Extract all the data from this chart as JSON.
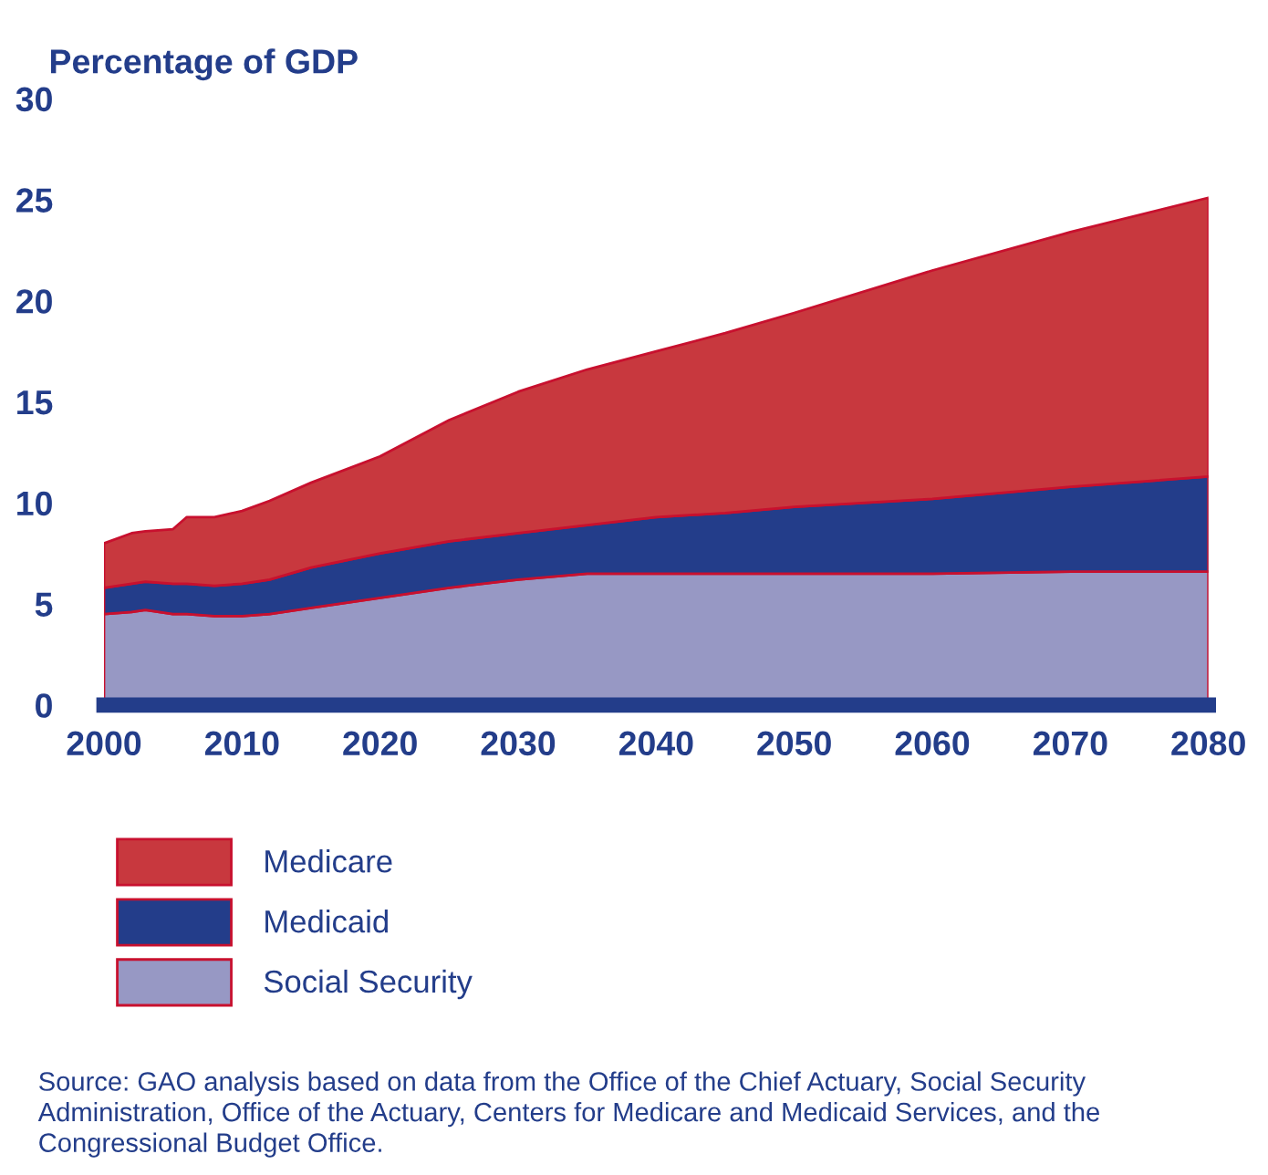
{
  "chart_data": {
    "type": "area",
    "stacked": true,
    "ylabel": "Percentage of GDP",
    "x": [
      2000,
      2002,
      2003,
      2005,
      2006,
      2008,
      2010,
      2012,
      2015,
      2020,
      2025,
      2030,
      2035,
      2040,
      2045,
      2050,
      2060,
      2070,
      2080
    ],
    "series": [
      {
        "name": "Social Security",
        "color": "#9798c4",
        "values": [
          4.5,
          4.6,
          4.7,
          4.5,
          4.5,
          4.4,
          4.4,
          4.5,
          4.8,
          5.3,
          5.8,
          6.2,
          6.5,
          6.5,
          6.5,
          6.5,
          6.5,
          6.6,
          6.6
        ]
      },
      {
        "name": "Medicaid",
        "color": "#233d8a",
        "values": [
          1.3,
          1.4,
          1.4,
          1.5,
          1.5,
          1.5,
          1.6,
          1.7,
          2.0,
          2.2,
          2.3,
          2.3,
          2.4,
          2.8,
          3.0,
          3.3,
          3.7,
          4.2,
          4.7
        ]
      },
      {
        "name": "Medicare",
        "color": "#c8383e",
        "values": [
          2.2,
          2.5,
          2.5,
          2.7,
          3.3,
          3.4,
          3.6,
          3.9,
          4.2,
          4.8,
          6.0,
          7.0,
          7.7,
          8.2,
          8.9,
          9.6,
          11.3,
          12.6,
          13.8
        ]
      }
    ],
    "xlim": [
      2000,
      2080
    ],
    "xticks": [
      2000,
      2010,
      2020,
      2030,
      2040,
      2050,
      2060,
      2070,
      2080
    ],
    "ylim": [
      0,
      30
    ],
    "yticks": [
      0,
      5,
      10,
      15,
      20,
      25,
      30
    ],
    "grid": false,
    "legend": "bottom",
    "annotations": [
      "Source: GAO analysis based on data from the Office of the Chief Actuary, Social Security Administration, Office of the Actuary, Centers for Medicare and Medicaid Services, and the Congressional Budget Office."
    ]
  }
}
